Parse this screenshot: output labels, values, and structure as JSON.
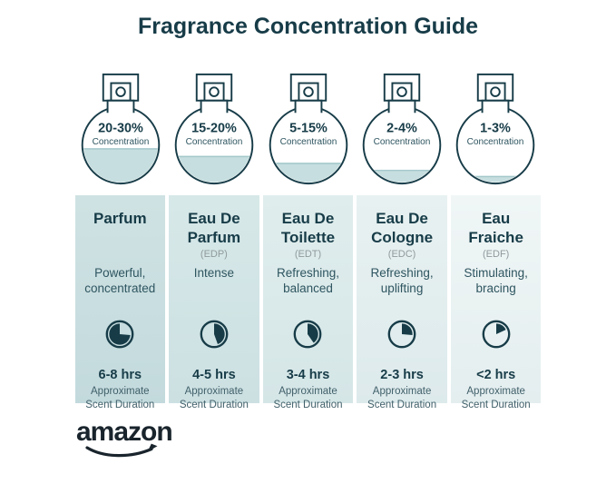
{
  "page": {
    "title": "Fragrance Concentration Guide"
  },
  "bottles": [
    {
      "range": "20-30%",
      "label": "Concentration",
      "fill": 0.46
    },
    {
      "range": "15-20%",
      "label": "Concentration",
      "fill": 0.36
    },
    {
      "range": "5-15%",
      "label": "Concentration",
      "fill": 0.27
    },
    {
      "range": "2-4%",
      "label": "Concentration",
      "fill": 0.18
    },
    {
      "range": "1-3%",
      "label": "Concentration",
      "fill": 0.1
    }
  ],
  "columns": [
    {
      "name": "Parfum",
      "abbr": "",
      "description": "Powerful, concentrated",
      "duration": "6-8 hrs",
      "duration_note": "Approximate Scent Duration",
      "clock": {
        "start_deg": 95,
        "end_deg": 360
      }
    },
    {
      "name": "Eau De Parfum",
      "abbr": "(EDP)",
      "description": "Intense",
      "duration": "4-5 hrs",
      "duration_note": "Approximate Scent Duration",
      "clock": {
        "start_deg": 0,
        "end_deg": 160
      }
    },
    {
      "name": "Eau De Toilette",
      "abbr": "(EDT)",
      "description": "Refreshing, balanced",
      "duration": "3-4 hrs",
      "duration_note": "Approximate Scent Duration",
      "clock": {
        "start_deg": 0,
        "end_deg": 145
      }
    },
    {
      "name": "Eau De Cologne",
      "abbr": "(EDC)",
      "description": "Refreshing, uplifting",
      "duration": "2-3 hrs",
      "duration_note": "Approximate Scent Duration",
      "clock": {
        "start_deg": 0,
        "end_deg": 95
      }
    },
    {
      "name": "Eau Fraiche",
      "abbr": "(EDF)",
      "description": "Stimulating, bracing",
      "duration": "<2 hrs",
      "duration_note": "Approximate Scent Duration",
      "clock": {
        "start_deg": 0,
        "end_deg": 65
      }
    }
  ],
  "footer": {
    "brand": "amazon"
  },
  "colors": {
    "dark_teal": "#173C48",
    "description_text": "#2E5560",
    "note_text": "#41606A",
    "abbr_gray": "#909A9D",
    "liquid": "#C6DEDF",
    "liquid_top_line": "#A4C8CB",
    "logo": "#19242C",
    "background": "#FFFFFF",
    "column_gradients": [
      [
        "#CFE2E3",
        "#C3DADD"
      ],
      [
        "#D7E8E8",
        "#CCE0E2"
      ],
      [
        "#E0EDED",
        "#D5E6E7"
      ],
      [
        "#E8F1F1",
        "#DDEAEC"
      ],
      [
        "#F0F6F6",
        "#E4EEEF"
      ]
    ]
  }
}
